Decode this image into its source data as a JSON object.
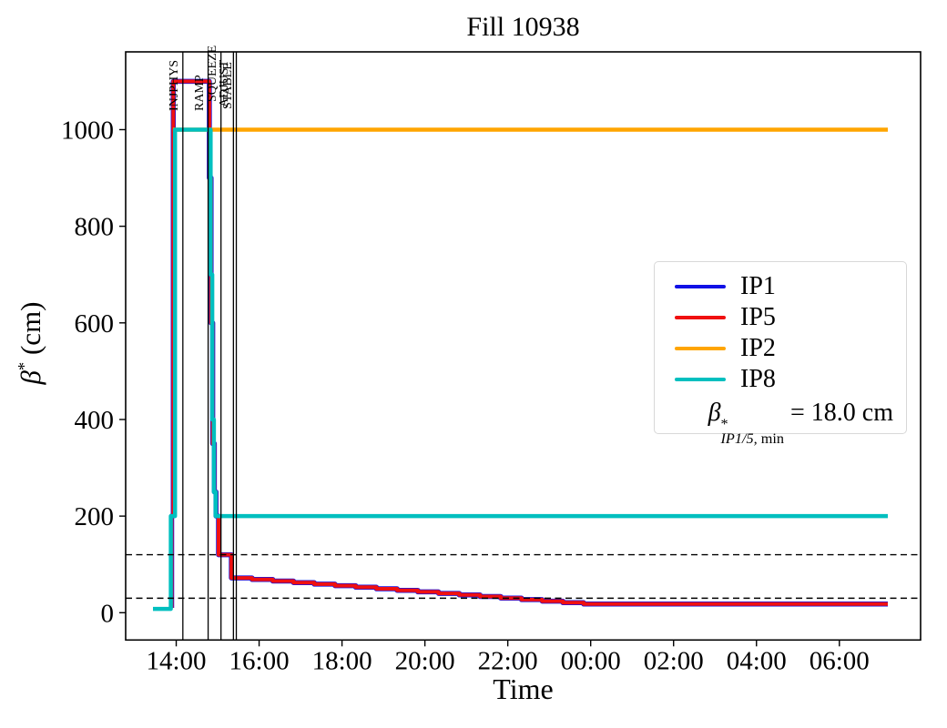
{
  "figure": {
    "title": "Fill 10938",
    "xlabel": "Time"
  },
  "ylabel": {
    "symbol": "β",
    "sup": "*",
    "rest": " (cm)"
  },
  "legend": {
    "entries": [
      {
        "label": "IP1",
        "color": "#1111e6"
      },
      {
        "label": "IP5",
        "color": "#f01010"
      },
      {
        "label": "IP2",
        "color": "#ffa500"
      },
      {
        "label": "IP8",
        "color": "#00bfbf"
      }
    ],
    "annotation": {
      "symbol": "β",
      "sup": "*",
      "sub_italic": "IP1/5,",
      "sub_roman": " min",
      "value": "= 18.0 cm"
    }
  },
  "chart_data": {
    "type": "line",
    "title": "Fill 10938",
    "xlabel": "Time",
    "ylabel": "beta* (cm)",
    "grid": false,
    "legend_position": "center right",
    "x_axis": {
      "unit": "time of day (HH:MM)",
      "min_hour": 12.78,
      "max_hour": 31.96,
      "ticks": [
        {
          "hour": 14,
          "label": "14:00"
        },
        {
          "hour": 16,
          "label": "16:00"
        },
        {
          "hour": 18,
          "label": "18:00"
        },
        {
          "hour": 20,
          "label": "20:00"
        },
        {
          "hour": 22,
          "label": "22:00"
        },
        {
          "hour": 24,
          "label": "00:00"
        },
        {
          "hour": 26,
          "label": "02:00"
        },
        {
          "hour": 28,
          "label": "04:00"
        },
        {
          "hour": 30,
          "label": "06:00"
        }
      ]
    },
    "y_axis": {
      "unit": "cm",
      "min": -56.5,
      "max": 1161,
      "ticks": [
        0,
        200,
        400,
        600,
        800,
        1000
      ]
    },
    "hlines": [
      {
        "value": 120,
        "style": "dashed",
        "color": "#000000"
      },
      {
        "value": 30,
        "style": "dashed",
        "color": "#000000"
      }
    ],
    "beam_modes": [
      {
        "label": "INJPHYS",
        "hour": 14.16
      },
      {
        "label": "RAMP",
        "hour": 14.77
      },
      {
        "label": "SQUEEZE",
        "hour": 15.08
      },
      {
        "label": "ADJUST",
        "hour": 15.38
      },
      {
        "label": "STABLE",
        "hour": 15.45
      }
    ],
    "beta_min_ip15_cm": 18.0,
    "series": [
      {
        "name": "IP1",
        "color": "#1111e6",
        "width": 5.5,
        "interp": "step",
        "points": [
          [
            13.89,
            10
          ],
          [
            13.89,
            200
          ],
          [
            13.93,
            1100
          ],
          [
            14.8,
            1100
          ],
          [
            14.8,
            900
          ],
          [
            14.84,
            600
          ],
          [
            14.88,
            350
          ],
          [
            14.92,
            250
          ],
          [
            14.96,
            200
          ],
          [
            15.02,
            120
          ],
          [
            15.33,
            72
          ],
          [
            15.83,
            68.8
          ],
          [
            16.33,
            65.6
          ],
          [
            16.83,
            62.4
          ],
          [
            17.33,
            59.2
          ],
          [
            17.83,
            56
          ],
          [
            18.33,
            52.8
          ],
          [
            18.83,
            49.6
          ],
          [
            19.33,
            46.4
          ],
          [
            19.83,
            43.2
          ],
          [
            20.33,
            40
          ],
          [
            20.83,
            36.8
          ],
          [
            21.33,
            33.6
          ],
          [
            21.83,
            30.4
          ],
          [
            22.33,
            27.2
          ],
          [
            22.83,
            24
          ],
          [
            23.33,
            20.8
          ],
          [
            23.83,
            18
          ],
          [
            31.17,
            18
          ]
        ]
      },
      {
        "name": "IP5",
        "color": "#f01010",
        "width": 4,
        "interp": "step",
        "points": [
          [
            13.89,
            10
          ],
          [
            13.89,
            200
          ],
          [
            13.93,
            1100
          ],
          [
            14.8,
            1100
          ],
          [
            14.8,
            900
          ],
          [
            14.84,
            600
          ],
          [
            14.88,
            350
          ],
          [
            14.92,
            250
          ],
          [
            14.96,
            200
          ],
          [
            15.02,
            120
          ],
          [
            15.33,
            72
          ],
          [
            15.83,
            68.8
          ],
          [
            16.33,
            65.6
          ],
          [
            16.83,
            62.4
          ],
          [
            17.33,
            59.2
          ],
          [
            17.83,
            56
          ],
          [
            18.33,
            52.8
          ],
          [
            18.83,
            49.6
          ],
          [
            19.33,
            46.4
          ],
          [
            19.83,
            43.2
          ],
          [
            20.33,
            40
          ],
          [
            20.83,
            36.8
          ],
          [
            21.33,
            33.6
          ],
          [
            21.83,
            30.4
          ],
          [
            22.33,
            27.2
          ],
          [
            22.83,
            24
          ],
          [
            23.33,
            20.8
          ],
          [
            23.83,
            18
          ],
          [
            31.17,
            18
          ]
        ]
      },
      {
        "name": "IP2",
        "color": "#ffa500",
        "width": 4.5,
        "interp": "step",
        "points": [
          [
            13.92,
            1000
          ],
          [
            31.17,
            1000
          ]
        ]
      },
      {
        "name": "IP8",
        "color": "#00bfbf",
        "width": 4.5,
        "interp": "step",
        "points": [
          [
            13.44,
            8
          ],
          [
            13.87,
            8
          ],
          [
            13.87,
            200
          ],
          [
            13.97,
            200
          ],
          [
            13.97,
            1000
          ],
          [
            14.83,
            1000
          ],
          [
            14.83,
            700
          ],
          [
            14.87,
            400
          ],
          [
            14.91,
            250
          ],
          [
            14.95,
            200
          ],
          [
            31.17,
            200
          ]
        ]
      }
    ]
  }
}
